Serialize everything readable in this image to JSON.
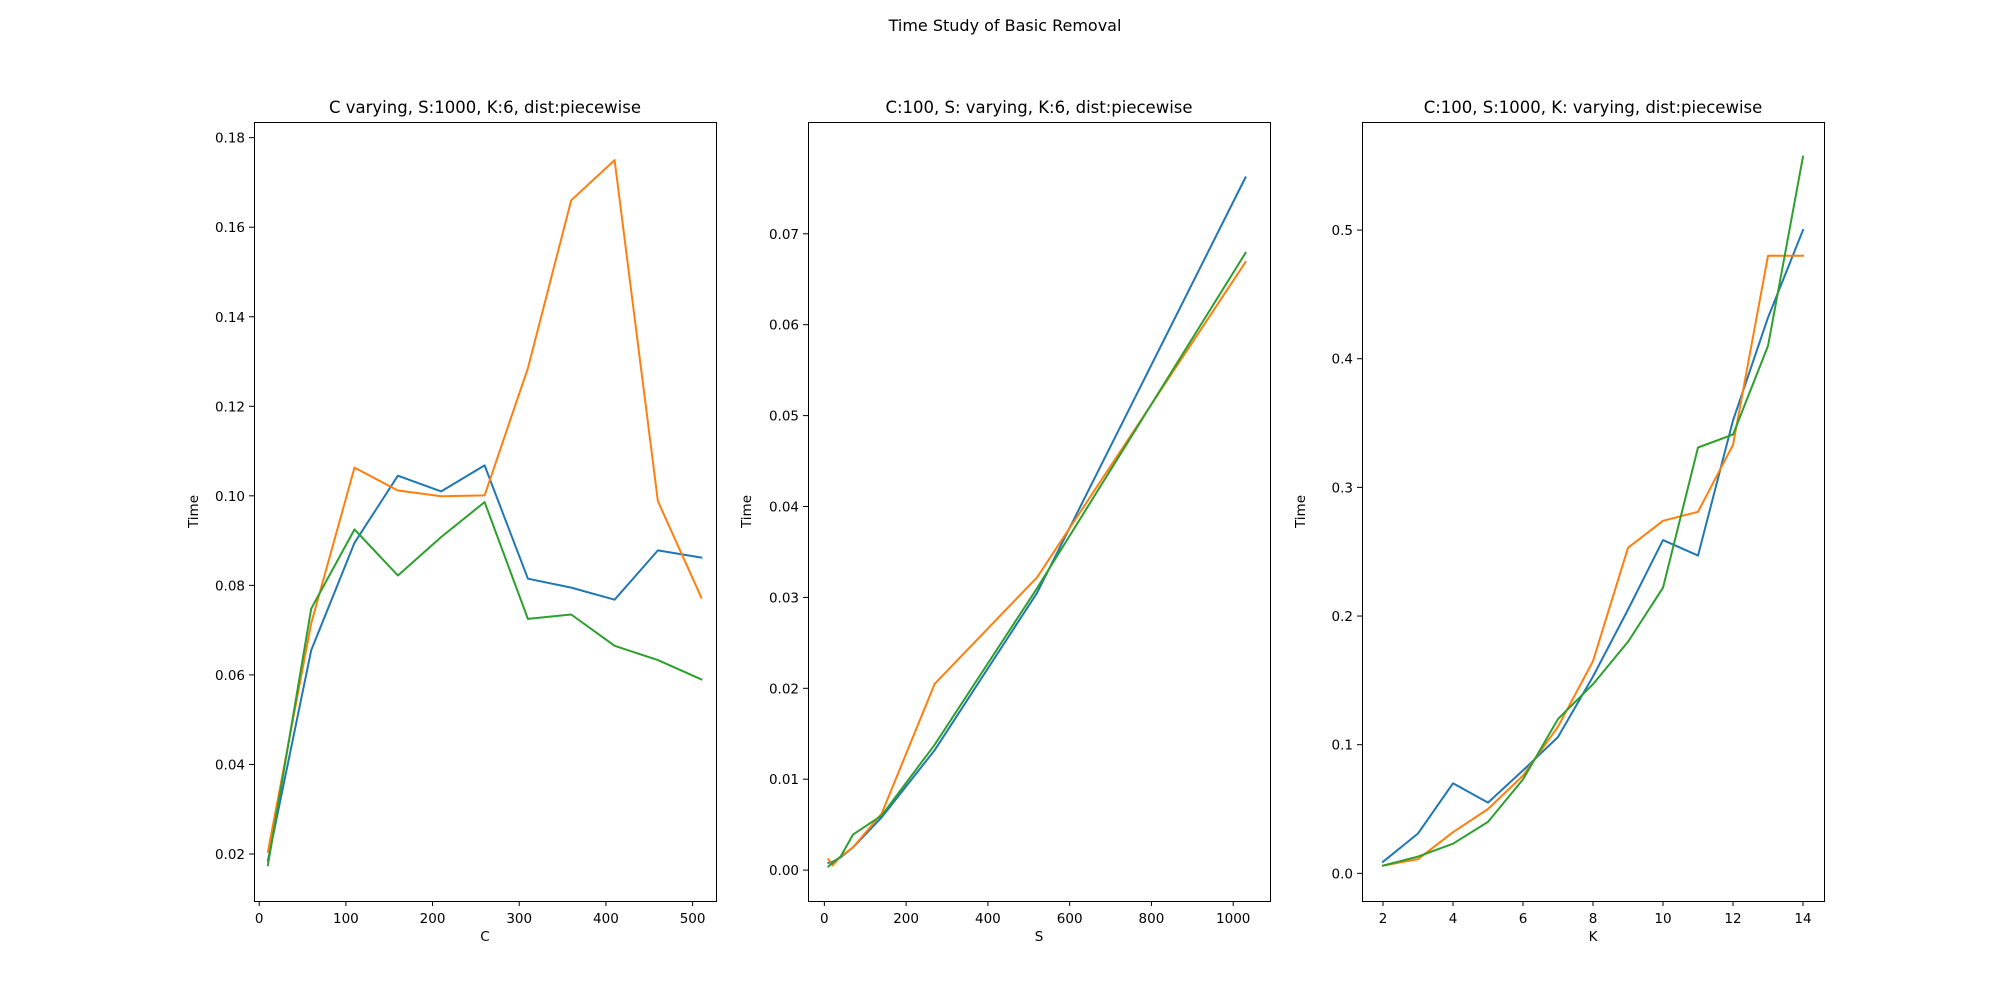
{
  "figure": {
    "title": "Time Study of Basic Removal"
  },
  "colors": {
    "blue": "#1f77b4",
    "orange": "#ff7f0e",
    "green": "#2ca02c"
  },
  "chart_data": [
    {
      "type": "line",
      "title": "C varying, S:1000, K:6, dist:piecewise",
      "xlabel": "C",
      "ylabel": "Time",
      "xlim": [
        -6,
        527
      ],
      "ylim": [
        0.0095,
        0.1835
      ],
      "xticks": [
        0,
        100,
        200,
        300,
        400,
        500
      ],
      "yticks": [
        0.02,
        0.04,
        0.06,
        0.08,
        0.1,
        0.12,
        0.14,
        0.16,
        0.18
      ],
      "ytick_labels": [
        "0.02",
        "0.04",
        "0.06",
        "0.08",
        "0.10",
        "0.12",
        "0.14",
        "0.16",
        "0.18"
      ],
      "grid": false,
      "x": [
        10,
        60,
        110,
        160,
        210,
        260,
        310,
        360,
        410,
        460,
        510
      ],
      "series": [
        {
          "color": "#1f77b4",
          "values": [
            0.0185,
            0.0655,
            0.0895,
            0.1045,
            0.101,
            0.1068,
            0.0815,
            0.0795,
            0.0768,
            0.0878,
            0.0862
          ]
        },
        {
          "color": "#ff7f0e",
          "values": [
            0.0205,
            0.0715,
            0.1063,
            0.1012,
            0.0999,
            0.1001,
            0.1285,
            0.166,
            0.175,
            0.0988,
            0.0773
          ]
        },
        {
          "color": "#2ca02c",
          "values": [
            0.0175,
            0.0748,
            0.0925,
            0.0822,
            0.0908,
            0.0986,
            0.0725,
            0.0735,
            0.0665,
            0.0633,
            0.059
          ]
        }
      ]
    },
    {
      "type": "line",
      "title": "C:100, S: varying, K:6, dist:piecewise",
      "xlabel": "S",
      "ylabel": "Time",
      "xlim": [
        -40,
        1090
      ],
      "ylim": [
        -0.0034,
        0.0823
      ],
      "xticks": [
        0,
        200,
        400,
        600,
        800,
        1000
      ],
      "yticks": [
        0.0,
        0.01,
        0.02,
        0.03,
        0.04,
        0.05,
        0.06,
        0.07
      ],
      "ytick_labels": [
        "0.00",
        "0.01",
        "0.02",
        "0.03",
        "0.04",
        "0.05",
        "0.06",
        "0.07"
      ],
      "grid": false,
      "x": [
        10,
        20,
        40,
        70,
        140,
        270,
        520,
        1030
      ],
      "series": [
        {
          "color": "#1f77b4",
          "values": [
            0.0008,
            0.0009,
            0.0014,
            0.0025,
            0.0058,
            0.0132,
            0.0305,
            0.0762
          ]
        },
        {
          "color": "#ff7f0e",
          "values": [
            0.0012,
            0.0005,
            0.0015,
            0.0025,
            0.0062,
            0.0205,
            0.0322,
            0.0669
          ]
        },
        {
          "color": "#2ca02c",
          "values": [
            0.0004,
            0.0008,
            0.0015,
            0.0039,
            0.006,
            0.0138,
            0.031,
            0.0679
          ]
        }
      ]
    },
    {
      "type": "line",
      "title": "C:100, S:1000, K: varying, dist:piecewise",
      "xlabel": "K",
      "ylabel": "Time",
      "xlim": [
        1.4,
        14.6
      ],
      "ylim": [
        -0.0215,
        0.584
      ],
      "xticks": [
        2,
        4,
        6,
        8,
        10,
        12,
        14
      ],
      "yticks": [
        0.0,
        0.1,
        0.2,
        0.3,
        0.4,
        0.5
      ],
      "ytick_labels": [
        "0.0",
        "0.1",
        "0.2",
        "0.3",
        "0.4",
        "0.5"
      ],
      "grid": false,
      "x": [
        2,
        3,
        4,
        5,
        6,
        7,
        8,
        9,
        10,
        11,
        12,
        13,
        14
      ],
      "series": [
        {
          "color": "#1f77b4",
          "values": [
            0.009,
            0.031,
            0.07,
            0.055,
            0.08,
            0.106,
            0.153,
            0.205,
            0.259,
            0.247,
            0.352,
            0.432,
            0.5
          ]
        },
        {
          "color": "#ff7f0e",
          "values": [
            0.006,
            0.011,
            0.032,
            0.05,
            0.076,
            0.114,
            0.165,
            0.253,
            0.274,
            0.281,
            0.333,
            0.48,
            0.48
          ]
        },
        {
          "color": "#2ca02c",
          "values": [
            0.006,
            0.013,
            0.023,
            0.04,
            0.073,
            0.12,
            0.147,
            0.18,
            0.222,
            0.331,
            0.341,
            0.41,
            0.557
          ]
        }
      ]
    }
  ]
}
